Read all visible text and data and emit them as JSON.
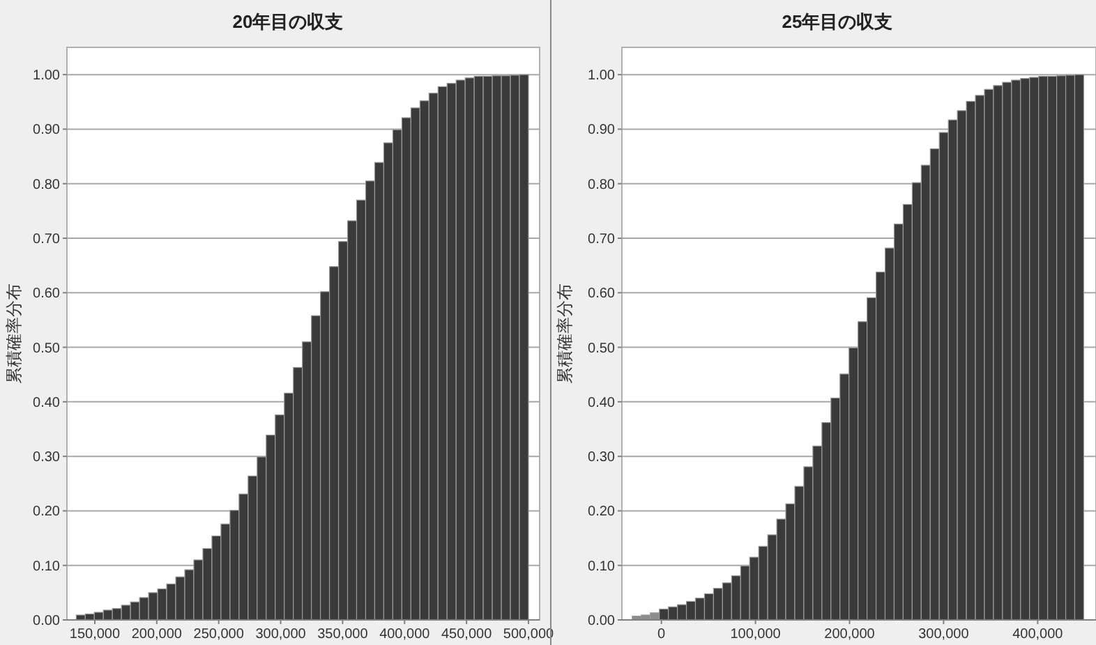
{
  "chart_data": [
    {
      "type": "histogram",
      "title": "20年目の収支",
      "ylabel": "累積確率分布",
      "grid": "y",
      "color": "#3a3a3a",
      "bins": [
        135000,
        142300,
        149600,
        156900,
        164200,
        171500,
        178800,
        186100,
        193400,
        200700,
        208000,
        215300,
        222600,
        229900,
        237200,
        244500,
        251800,
        259100,
        266400,
        273700,
        281000,
        288300,
        295600,
        302900,
        310200,
        317500,
        324800,
        332100,
        339400,
        346700,
        354000,
        361300,
        368600,
        375900,
        383200,
        390500,
        397800,
        405100,
        412400,
        419700,
        427000,
        434300,
        441600,
        448900,
        456200,
        463500,
        470800,
        478100,
        485400,
        492700,
        500000
      ],
      "values": [
        0.009,
        0.011,
        0.014,
        0.018,
        0.021,
        0.027,
        0.033,
        0.041,
        0.05,
        0.057,
        0.066,
        0.079,
        0.092,
        0.11,
        0.131,
        0.154,
        0.176,
        0.201,
        0.231,
        0.264,
        0.299,
        0.339,
        0.376,
        0.416,
        0.463,
        0.51,
        0.558,
        0.602,
        0.648,
        0.694,
        0.732,
        0.77,
        0.805,
        0.839,
        0.875,
        0.899,
        0.921,
        0.939,
        0.952,
        0.966,
        0.978,
        0.984,
        0.99,
        0.994,
        0.997,
        0.997,
        0.998,
        0.998,
        0.999,
        1.0
      ],
      "xlim": [
        127500,
        509000
      ],
      "ylim": [
        0,
        1.05
      ],
      "xticks": [
        {
          "value": 150000,
          "label": "150,000"
        },
        {
          "value": 200000,
          "label": "200,000"
        },
        {
          "value": 250000,
          "label": "250,000"
        },
        {
          "value": 300000,
          "label": "300,000"
        },
        {
          "value": 350000,
          "label": "350,000"
        },
        {
          "value": 400000,
          "label": "400,000"
        },
        {
          "value": 450000,
          "label": "450,000"
        },
        {
          "value": 500000,
          "label": "500,000"
        }
      ],
      "yticks": [
        {
          "value": 0,
          "label": "0.00"
        },
        {
          "value": 0.1,
          "label": "0.10"
        },
        {
          "value": 0.2,
          "label": "0.20"
        },
        {
          "value": 0.3,
          "label": "0.30"
        },
        {
          "value": 0.4,
          "label": "0.40"
        },
        {
          "value": 0.5,
          "label": "0.50"
        },
        {
          "value": 0.6,
          "label": "0.60"
        },
        {
          "value": 0.7,
          "label": "0.70"
        },
        {
          "value": 0.8,
          "label": "0.80"
        },
        {
          "value": 0.9,
          "label": "0.90"
        },
        {
          "value": 1,
          "label": "1.00"
        }
      ]
    },
    {
      "type": "histogram",
      "title": "25年目の収支",
      "ylabel": "累積確率分布",
      "grid": "y",
      "bins": [
        -31000,
        -21400,
        -11800,
        -2200,
        7400,
        17000,
        26600,
        36200,
        45800,
        55400,
        65000,
        74600,
        84200,
        93800,
        103400,
        113000,
        122600,
        132200,
        141800,
        151400,
        161000,
        170600,
        180200,
        189800,
        199400,
        209000,
        218600,
        228200,
        237800,
        247400,
        257000,
        266600,
        276200,
        285800,
        295400,
        305000,
        314600,
        324200,
        333800,
        343400,
        353000,
        362600,
        372200,
        381800,
        391400,
        401000,
        410600,
        420200,
        429800,
        439400,
        449000
      ],
      "values": [
        0.007,
        0.009,
        0.013,
        0.02,
        0.024,
        0.028,
        0.034,
        0.04,
        0.048,
        0.058,
        0.068,
        0.081,
        0.099,
        0.115,
        0.135,
        0.156,
        0.185,
        0.213,
        0.245,
        0.281,
        0.319,
        0.362,
        0.407,
        0.451,
        0.499,
        0.547,
        0.591,
        0.638,
        0.682,
        0.726,
        0.762,
        0.802,
        0.834,
        0.864,
        0.894,
        0.917,
        0.934,
        0.951,
        0.962,
        0.973,
        0.98,
        0.986,
        0.99,
        0.993,
        0.995,
        0.997,
        0.997,
        0.998,
        0.999,
        1.0
      ],
      "colors": [
        "#8c8c8c",
        "#8c8c8c",
        "#8c8c8c",
        "#3a3a3a",
        "#3a3a3a",
        "#3a3a3a",
        "#3a3a3a",
        "#3a3a3a",
        "#3a3a3a",
        "#3a3a3a",
        "#3a3a3a",
        "#3a3a3a",
        "#3a3a3a",
        "#3a3a3a",
        "#3a3a3a",
        "#3a3a3a",
        "#3a3a3a",
        "#3a3a3a",
        "#3a3a3a",
        "#3a3a3a",
        "#3a3a3a",
        "#3a3a3a",
        "#3a3a3a",
        "#3a3a3a",
        "#3a3a3a",
        "#3a3a3a",
        "#3a3a3a",
        "#3a3a3a",
        "#3a3a3a",
        "#3a3a3a",
        "#3a3a3a",
        "#3a3a3a",
        "#3a3a3a",
        "#3a3a3a",
        "#3a3a3a",
        "#3a3a3a",
        "#3a3a3a",
        "#3a3a3a",
        "#3a3a3a",
        "#3a3a3a",
        "#3a3a3a",
        "#3a3a3a",
        "#3a3a3a",
        "#3a3a3a",
        "#3a3a3a",
        "#3a3a3a",
        "#3a3a3a",
        "#3a3a3a",
        "#3a3a3a",
        "#3a3a3a"
      ],
      "xlim": [
        -42000,
        462000
      ],
      "ylim": [
        0,
        1.05
      ],
      "xticks": [
        {
          "value": 0,
          "label": "0"
        },
        {
          "value": 100000,
          "label": "100,000"
        },
        {
          "value": 200000,
          "label": "200,000"
        },
        {
          "value": 300000,
          "label": "300,000"
        },
        {
          "value": 400000,
          "label": "400,000"
        }
      ],
      "yticks": [
        {
          "value": 0,
          "label": "0.00"
        },
        {
          "value": 0.1,
          "label": "0.10"
        },
        {
          "value": 0.2,
          "label": "0.20"
        },
        {
          "value": 0.3,
          "label": "0.30"
        },
        {
          "value": 0.4,
          "label": "0.40"
        },
        {
          "value": 0.5,
          "label": "0.50"
        },
        {
          "value": 0.6,
          "label": "0.60"
        },
        {
          "value": 0.7,
          "label": "0.70"
        },
        {
          "value": 0.8,
          "label": "0.80"
        },
        {
          "value": 0.9,
          "label": "0.90"
        },
        {
          "value": 1,
          "label": "1.00"
        }
      ]
    }
  ]
}
